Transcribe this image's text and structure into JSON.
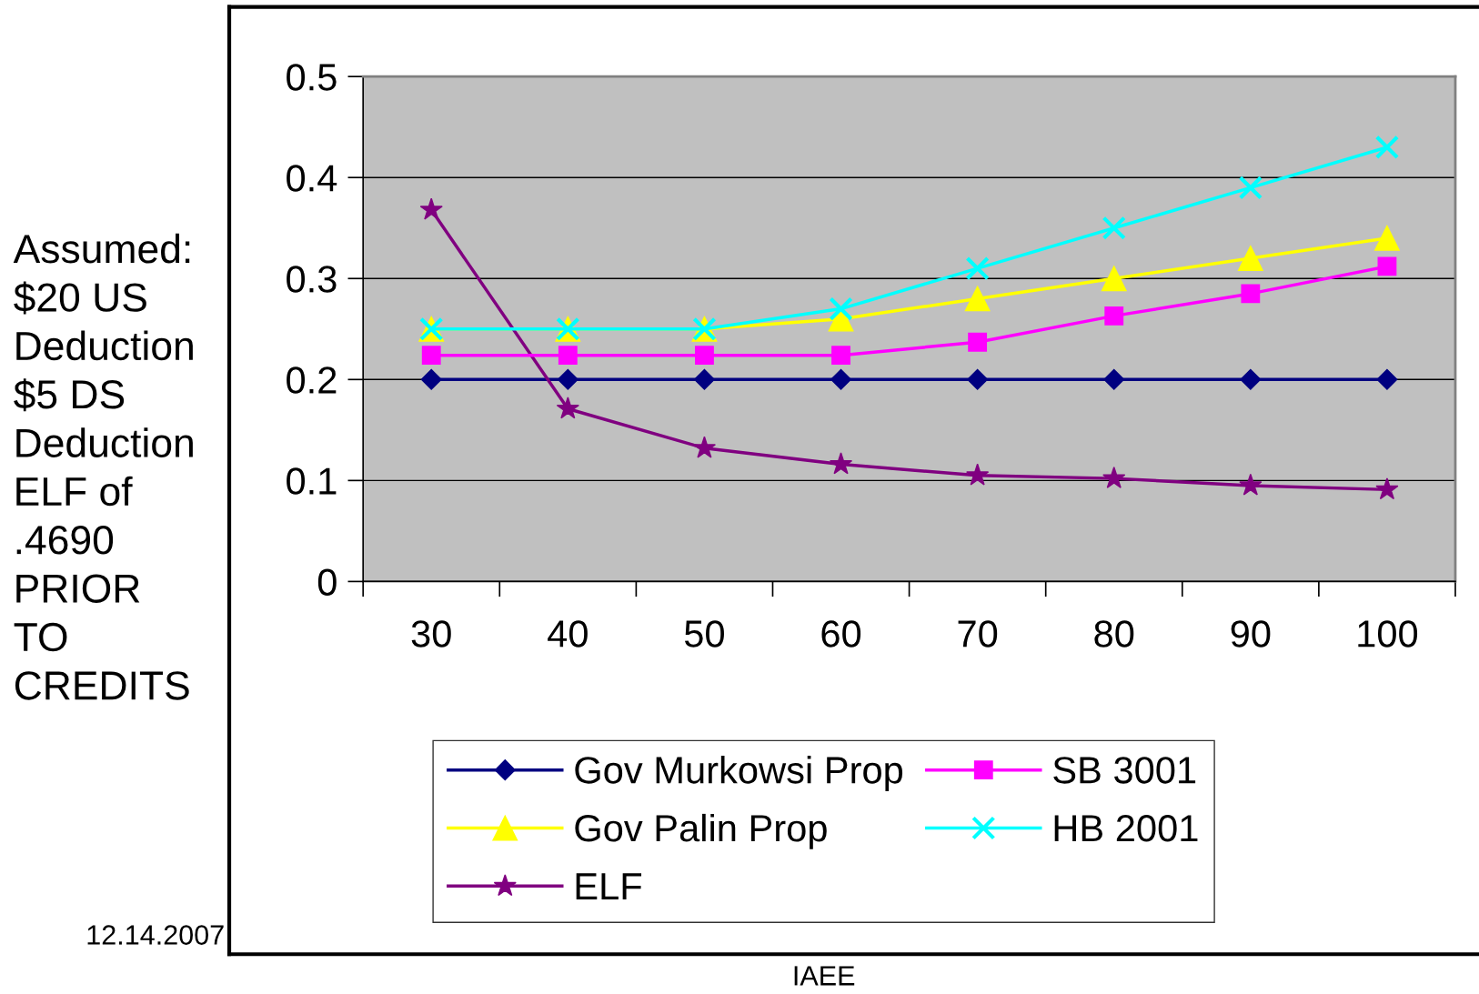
{
  "chart_data": {
    "type": "line",
    "categories": [
      "30",
      "40",
      "50",
      "60",
      "70",
      "80",
      "90",
      "100"
    ],
    "series": [
      {
        "name": "Gov Murkowsi Prop",
        "color": "#000080",
        "marker": "diamond",
        "values": [
          0.2,
          0.2,
          0.2,
          0.2,
          0.2,
          0.2,
          0.2,
          0.2
        ]
      },
      {
        "name": "Gov Palin Prop",
        "color": "#ffff00",
        "marker": "triangle",
        "values": [
          0.25,
          0.25,
          0.25,
          0.26,
          0.28,
          0.3,
          0.32,
          0.34
        ]
      },
      {
        "name": "ELF",
        "color": "#800080",
        "marker": "star",
        "values": [
          0.368,
          0.171,
          0.132,
          0.116,
          0.105,
          0.102,
          0.095,
          0.091
        ]
      },
      {
        "name": "SB 3001",
        "color": "#ff00ff",
        "marker": "square",
        "values": [
          0.224,
          0.224,
          0.224,
          0.224,
          0.237,
          0.263,
          0.285,
          0.312
        ]
      },
      {
        "name": "HB 2001",
        "color": "#00ffff",
        "marker": "cross",
        "values": [
          0.25,
          0.25,
          0.25,
          0.27,
          0.31,
          0.35,
          0.39,
          0.43
        ]
      }
    ],
    "ylim": [
      0,
      0.5
    ],
    "yticks": [
      0,
      0.1,
      0.2,
      0.3,
      0.4,
      0.5
    ],
    "grid": "y",
    "legend": "bottom",
    "line_style": "solid",
    "annotations": [
      "Assumed:\n$20 US\nDeduction\n$5 DS\nDeduction\nELF of\n.4690\nPRIOR\nTO\nCREDITS",
      "12.14.2007",
      "IAEE"
    ]
  }
}
